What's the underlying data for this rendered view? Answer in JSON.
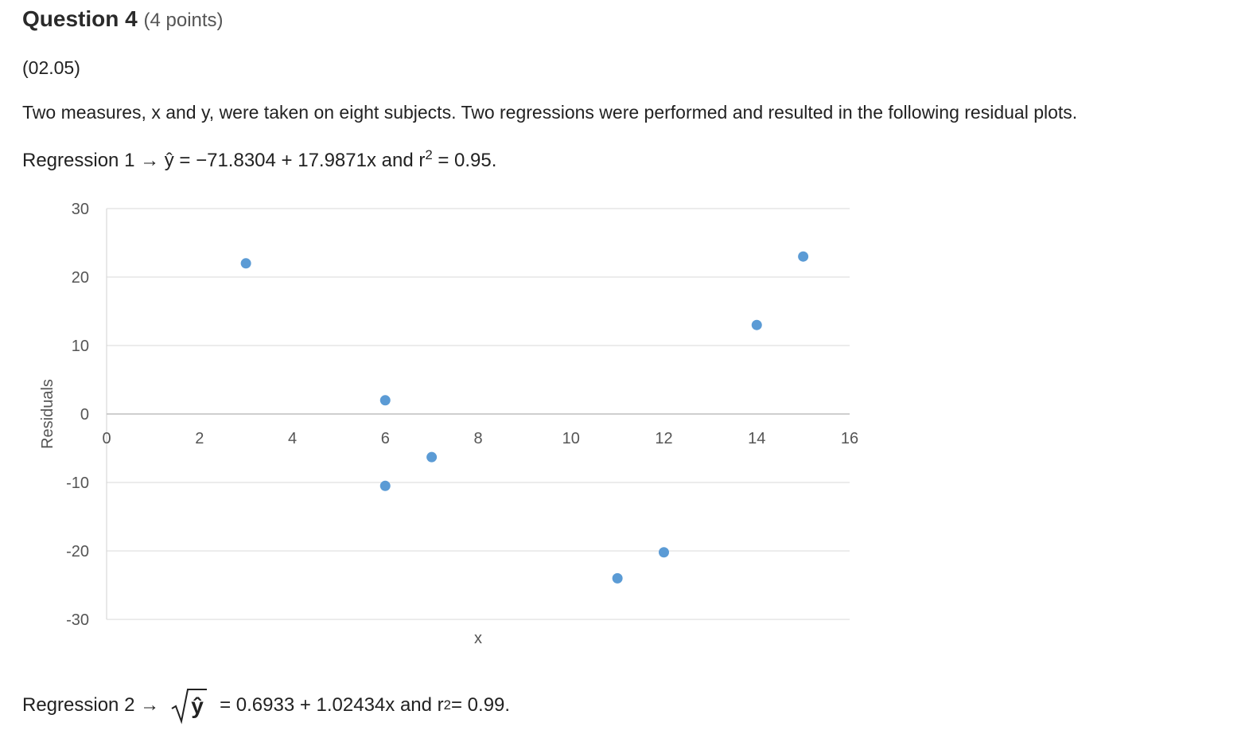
{
  "question": {
    "title": "Question 4",
    "points": "(4 points)",
    "code": "(02.05)",
    "text": "Two measures, x and y, were taken on eight subjects. Two regressions were performed and resulted in the following residual plots.",
    "regression1_label": "Regression 1 → ŷ = −71.8304 + 17.9871x and r",
    "regression1_exp": "2",
    "regression1_tail": " = 0.95.",
    "regression2_label": "Regression 2 →",
    "regression2_radicand": "ŷ",
    "regression2_eq": "= 0.6933 + 1.02434x and r",
    "regression2_exp": "2",
    "regression2_tail": " = 0.99."
  },
  "chart_data": {
    "type": "scatter",
    "xlabel": "x",
    "ylabel": "Residuals",
    "xlim": [
      0,
      16
    ],
    "ylim": [
      -30,
      30
    ],
    "x_ticks": [
      0,
      2,
      4,
      6,
      8,
      10,
      12,
      14,
      16
    ],
    "y_ticks": [
      30,
      20,
      10,
      0,
      -10,
      -20,
      -30
    ],
    "grid": true,
    "point_color": "#5b9bd5",
    "x": [
      3,
      6,
      6,
      7,
      11,
      12,
      14,
      15
    ],
    "y": [
      22,
      2,
      -10.5,
      -6.3,
      -24,
      -20.2,
      13,
      23
    ]
  }
}
